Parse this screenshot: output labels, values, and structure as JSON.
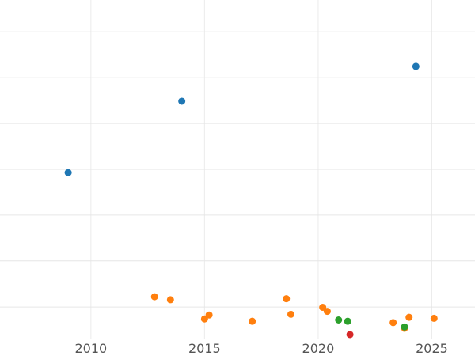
{
  "chart_data": {
    "type": "scatter",
    "title": "",
    "xlabel": "",
    "ylabel": "",
    "xlim": [
      2006.0,
      2026.9
    ],
    "ylim": [
      -0.02,
      1.0
    ],
    "x_ticks": [
      2010,
      2015,
      2020,
      2025
    ],
    "x_tick_labels": [
      "2010",
      "2015",
      "2020",
      "2025"
    ],
    "y_gridlines": [
      0.075,
      0.214,
      0.352,
      0.49,
      0.628,
      0.766,
      0.904
    ],
    "grid": true,
    "legend": "none",
    "series": [
      {
        "color": "#1f77b4",
        "points": [
          {
            "x": 2009.0,
            "y": 0.48
          },
          {
            "x": 2014.0,
            "y": 0.695
          },
          {
            "x": 2024.3,
            "y": 0.8
          }
        ]
      },
      {
        "color": "#ff7f0e",
        "points": [
          {
            "x": 2012.8,
            "y": 0.106
          },
          {
            "x": 2013.5,
            "y": 0.097
          },
          {
            "x": 2015.0,
            "y": 0.039
          },
          {
            "x": 2015.2,
            "y": 0.051
          },
          {
            "x": 2017.1,
            "y": 0.032
          },
          {
            "x": 2018.6,
            "y": 0.1
          },
          {
            "x": 2018.8,
            "y": 0.053
          },
          {
            "x": 2020.2,
            "y": 0.074
          },
          {
            "x": 2020.4,
            "y": 0.062
          },
          {
            "x": 2023.3,
            "y": 0.028
          },
          {
            "x": 2023.8,
            "y": 0.011
          },
          {
            "x": 2024.0,
            "y": 0.044
          },
          {
            "x": 2025.1,
            "y": 0.041
          }
        ]
      },
      {
        "color": "#2ca02c",
        "points": [
          {
            "x": 2020.9,
            "y": 0.036
          },
          {
            "x": 2021.3,
            "y": 0.032
          },
          {
            "x": 2023.8,
            "y": 0.015
          }
        ]
      },
      {
        "color": "#d62728",
        "points": [
          {
            "x": 2021.4,
            "y": -0.008
          }
        ]
      }
    ]
  }
}
